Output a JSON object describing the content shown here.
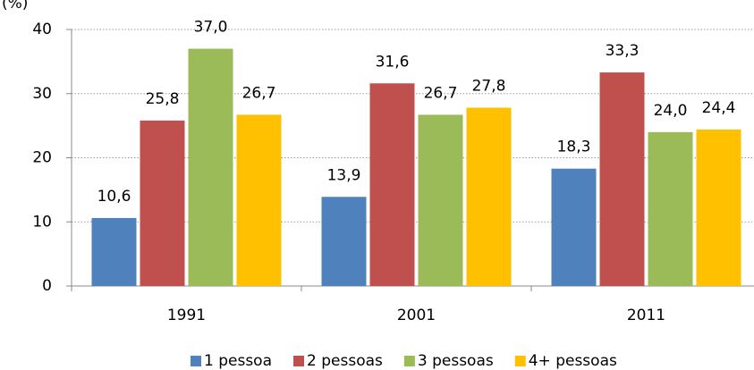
{
  "chart_data": {
    "type": "bar",
    "ylabel": "(%)",
    "categories": [
      "1991",
      "2001",
      "2011"
    ],
    "series": [
      {
        "name": "1 pessoa",
        "color": "#4f81bd",
        "values": [
          10.6,
          13.9,
          18.3
        ],
        "value_labels": [
          "10,6",
          "13,9",
          "18,3"
        ]
      },
      {
        "name": "2 pessoas",
        "color": "#c0504d",
        "values": [
          25.8,
          31.6,
          33.3
        ],
        "value_labels": [
          "25,8",
          "31,6",
          "33,3"
        ]
      },
      {
        "name": "3 pessoas",
        "color": "#9bbb59",
        "values": [
          37.0,
          26.7,
          24.0
        ],
        "value_labels": [
          "37,0",
          "26,7",
          "24,0"
        ]
      },
      {
        "name": "4+ pessoas",
        "color": "#ffc000",
        "values": [
          26.7,
          27.8,
          24.4
        ],
        "value_labels": [
          "26,7",
          "27,8",
          "24,4"
        ]
      }
    ],
    "ylim": [
      0,
      40
    ],
    "yticks": [
      0,
      10,
      20,
      30,
      40
    ],
    "grid": true,
    "legend": "bottom"
  }
}
